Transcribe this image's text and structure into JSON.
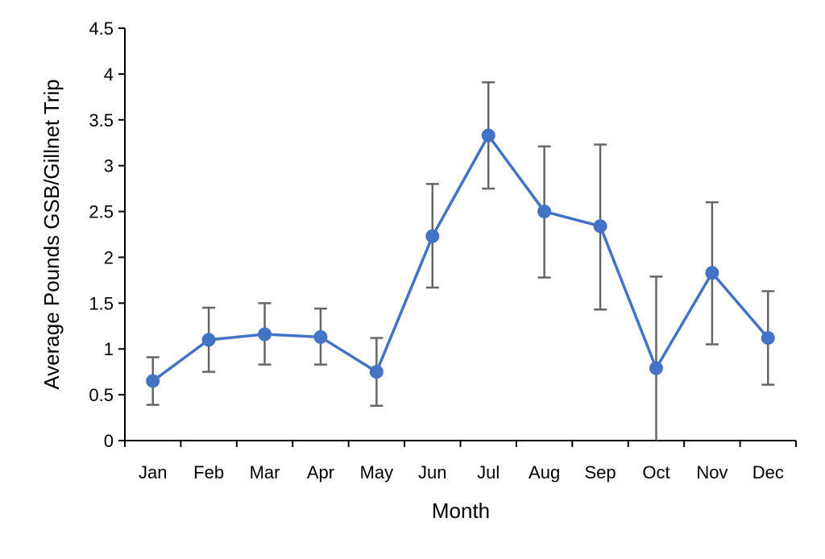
{
  "chart_data": {
    "type": "line",
    "title": "",
    "xlabel": "Month",
    "ylabel": "Average Pounds GSB/Gillnet Trip",
    "ylim": [
      0,
      4.5
    ],
    "yticks": [
      0,
      0.5,
      1,
      1.5,
      2,
      2.5,
      3,
      3.5,
      4,
      4.5
    ],
    "ytick_labels": [
      "0",
      "0.5",
      "1",
      "1.5",
      "2",
      "2.5",
      "3",
      "3.5",
      "4",
      "4.5"
    ],
    "categories": [
      "Jan",
      "Feb",
      "Mar",
      "Apr",
      "May",
      "Jun",
      "Jul",
      "Aug",
      "Sep",
      "Oct",
      "Nov",
      "Dec"
    ],
    "grid": false,
    "legend": null,
    "series": [
      {
        "name": "Average Pounds GSB/Gillnet Trip",
        "color": "#4472C4",
        "values": [
          0.65,
          1.1,
          1.16,
          1.13,
          0.75,
          2.23,
          3.33,
          2.5,
          2.34,
          0.79,
          1.83,
          1.12
        ],
        "error_upper": [
          0.91,
          1.45,
          1.5,
          1.44,
          1.12,
          2.8,
          3.91,
          3.21,
          3.23,
          1.79,
          2.6,
          1.63
        ],
        "error_lower": [
          0.39,
          0.75,
          0.83,
          0.83,
          0.38,
          1.67,
          2.75,
          1.78,
          1.43,
          0.0,
          1.05,
          0.61
        ]
      }
    ],
    "error_bar_color": "#666666"
  }
}
